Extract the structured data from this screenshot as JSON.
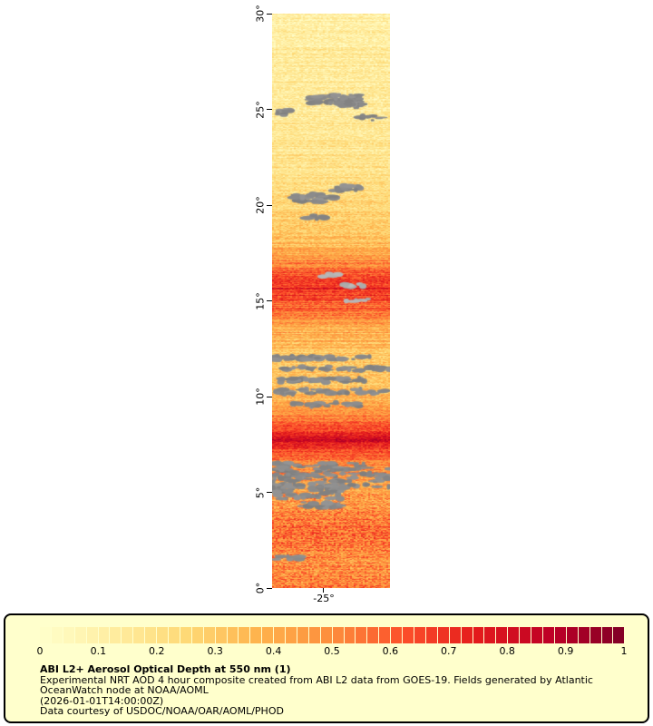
{
  "axes": {
    "y_tick_labels": [
      "30°",
      "25°",
      "20°",
      "15°",
      "10°",
      "5°",
      "0°"
    ],
    "x_tick_label": "-25°"
  },
  "colorbar": {
    "tick_labels": [
      "0",
      "0.1",
      "0.2",
      "0.3",
      "0.4",
      "0.5",
      "0.6",
      "0.7",
      "0.8",
      "0.9",
      "1"
    ],
    "segments": 50,
    "background": "#FFFFCC",
    "border_color": "#000000"
  },
  "caption": {
    "title": "ABI L2+ Aerosol Optical Depth at 550 nm (1)",
    "description": "Experimental NRT AOD 4 hour composite created from ABI L2 data from GOES-19. Fields generated by Atlantic OceanWatch node at NOAA/AOML",
    "timestamp": "(2026-01-01T14:00:00Z)",
    "credit": "Data courtesy of USDOC/NOAA/OAR/AOML/PHOD"
  },
  "chart_data": {
    "type": "heatmap",
    "title": "ABI L2+ Aerosol Optical Depth at 550 nm (1)",
    "variable": "Aerosol Optical Depth (AOD) at 550 nm",
    "satellite": "GOES-19",
    "value_range": [
      0,
      1
    ],
    "colorbar_ticks": [
      0,
      0.1,
      0.2,
      0.3,
      0.4,
      0.5,
      0.6,
      0.7,
      0.8,
      0.9,
      1
    ],
    "lat_range_deg": [
      0,
      30
    ],
    "lat_ticks_deg": [
      30,
      25,
      20,
      15,
      10,
      5,
      0
    ],
    "lon_tick_deg": -25,
    "colormap": {
      "name": "YlOrRd",
      "stops": [
        "#FFFFCC",
        "#FFEDA0",
        "#FED976",
        "#FEB24C",
        "#FD8D3C",
        "#FC4E2A",
        "#E31A1C",
        "#BD0026",
        "#800026"
      ]
    },
    "missing_data_color": "#8A8A8A",
    "aod_lat_profile": {
      "lat": [
        30,
        27,
        25.5,
        24,
        22,
        20.5,
        19,
        17.5,
        16.5,
        15.8,
        15,
        14.2,
        13.2,
        12.3,
        11.3,
        10.3,
        9.3,
        8.5,
        7.8,
        7.0,
        6.2,
        5.2,
        4.4,
        3.6,
        2.8,
        2.0,
        1.2,
        0.5,
        0
      ],
      "mean_aod": [
        0.1,
        0.15,
        0.13,
        0.17,
        0.18,
        0.22,
        0.28,
        0.38,
        0.6,
        0.72,
        0.62,
        0.5,
        0.38,
        0.3,
        0.3,
        0.35,
        0.45,
        0.6,
        0.82,
        0.6,
        0.48,
        0.42,
        0.46,
        0.52,
        0.56,
        0.52,
        0.48,
        0.5,
        0.52
      ]
    },
    "cloud_bands": [
      {
        "lat": 25.55,
        "x0": 0.3,
        "x1": 0.75,
        "h": 0.45,
        "n": 55
      },
      {
        "lat": 25.2,
        "x0": 0.55,
        "x1": 0.8,
        "h": 0.25,
        "n": 15
      },
      {
        "lat": 24.85,
        "x0": 0.04,
        "x1": 0.18,
        "h": 0.22,
        "n": 8
      },
      {
        "lat": 24.55,
        "x0": 0.72,
        "x1": 0.95,
        "h": 0.25,
        "n": 10
      },
      {
        "lat": 20.9,
        "x0": 0.5,
        "x1": 0.75,
        "h": 0.3,
        "n": 16
      },
      {
        "lat": 20.35,
        "x0": 0.18,
        "x1": 0.55,
        "h": 0.45,
        "n": 34
      },
      {
        "lat": 19.4,
        "x0": 0.28,
        "x1": 0.45,
        "h": 0.2,
        "n": 7
      },
      {
        "lat": 16.35,
        "x0": 0.42,
        "x1": 0.62,
        "h": 0.18,
        "n": 8,
        "light": true
      },
      {
        "lat": 15.8,
        "x0": 0.55,
        "x1": 0.78,
        "h": 0.18,
        "n": 8,
        "light": true
      },
      {
        "lat": 15.05,
        "x0": 0.6,
        "x1": 0.82,
        "h": 0.18,
        "n": 6,
        "light": true
      },
      {
        "lat": 12.0,
        "x0": 0.0,
        "x1": 0.85,
        "h": 0.22,
        "n": 35
      },
      {
        "lat": 11.45,
        "x0": 0.1,
        "x1": 1.0,
        "h": 0.22,
        "n": 38
      },
      {
        "lat": 10.85,
        "x0": 0.0,
        "x1": 0.8,
        "h": 0.22,
        "n": 33
      },
      {
        "lat": 10.25,
        "x0": 0.0,
        "x1": 1.0,
        "h": 0.26,
        "n": 45
      },
      {
        "lat": 9.6,
        "x0": 0.15,
        "x1": 0.75,
        "h": 0.2,
        "n": 22
      },
      {
        "lat": 5.9,
        "x0": 0.0,
        "x1": 1.0,
        "h": 1.3,
        "n": 150
      },
      {
        "lat": 5.0,
        "x0": 0.0,
        "x1": 0.6,
        "h": 0.7,
        "n": 55
      },
      {
        "lat": 4.35,
        "x0": 0.25,
        "x1": 0.65,
        "h": 0.4,
        "n": 20
      },
      {
        "lat": 1.6,
        "x0": 0.0,
        "x1": 0.25,
        "h": 0.3,
        "n": 8
      }
    ]
  }
}
